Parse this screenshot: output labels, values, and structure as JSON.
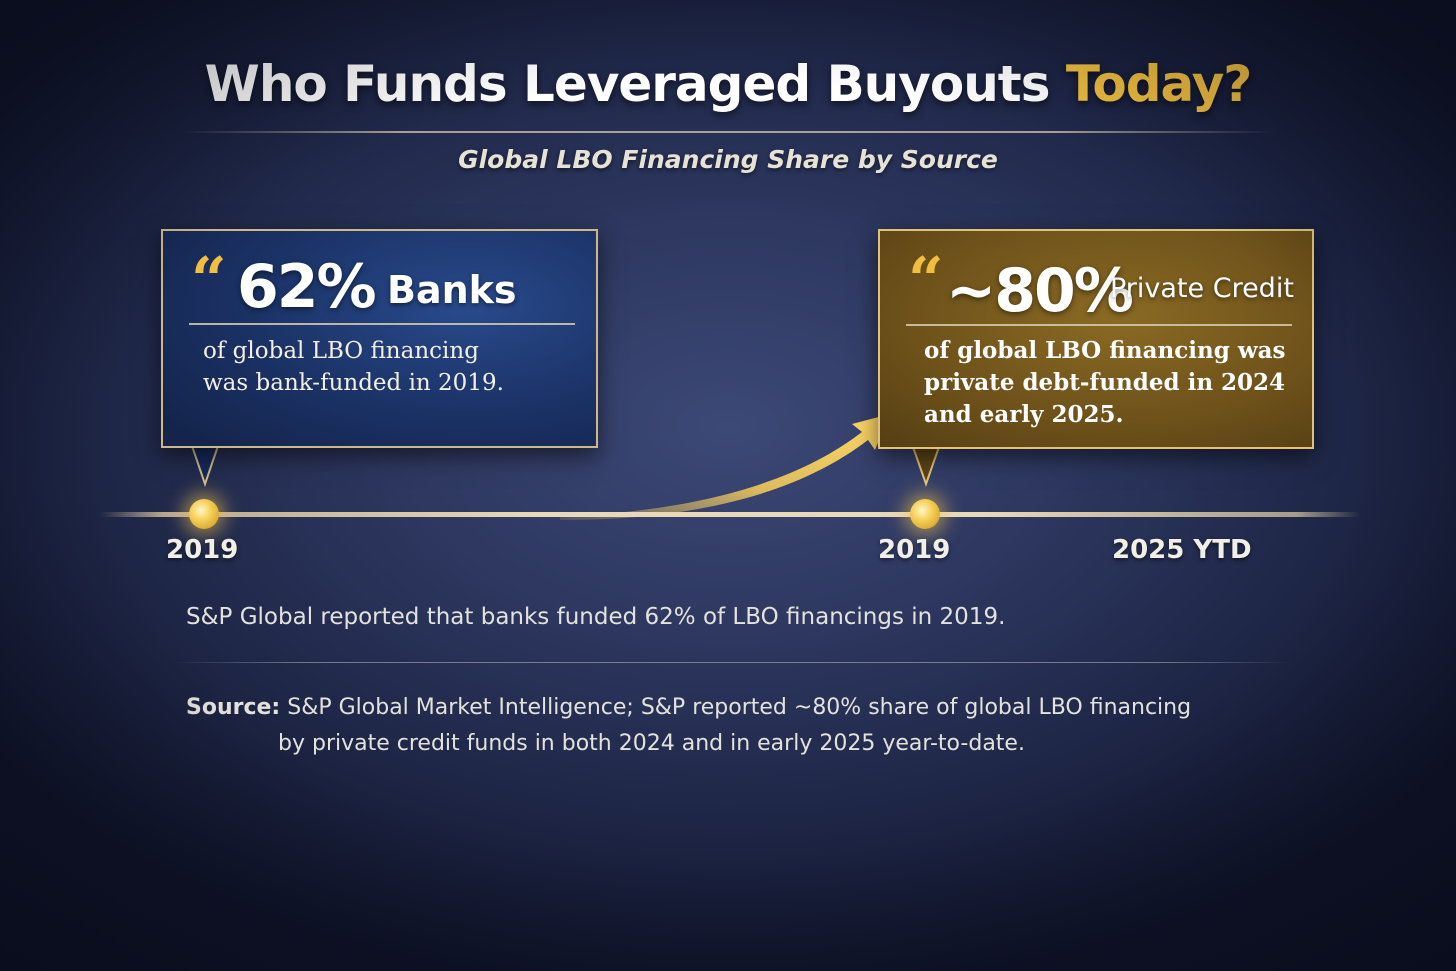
{
  "title": {
    "main": "Who Funds Leveraged Buyouts",
    "accent": "Today?"
  },
  "subtitle": "Global LBO Financing Share by Source",
  "callouts": {
    "banks": {
      "quote": "“",
      "percent": "62%",
      "label": "Banks",
      "body_line1": "of global LBO financing",
      "body_line2": "was bank-funded in 2019."
    },
    "private_credit": {
      "quote": "“",
      "percent": "~80%",
      "label": "Private Credit",
      "body_line1": "of global LBO financing was",
      "body_line2": "private debt-funded in 2024",
      "body_line3": "and early 2025."
    }
  },
  "timeline": {
    "labels": [
      "2019",
      "2019",
      "2025 YTD"
    ]
  },
  "note": "S&P Global reported that banks funded 62% of LBO financings in 2019.",
  "source": {
    "label": "Source:",
    "line1": "S&P Global Market Intelligence; S&P reported ~80% share of global LBO financing",
    "line2": "by private credit funds in both 2024 and in early 2025 year-to-date."
  },
  "colors": {
    "background": "#2d375f",
    "accent_gold": "#f1bf3f",
    "banks_box": "#1b3266",
    "private_credit_box": "#6d511a"
  },
  "icons": [
    "quote-mark-icon",
    "curved-arrow-icon",
    "timeline-dot-icon"
  ]
}
